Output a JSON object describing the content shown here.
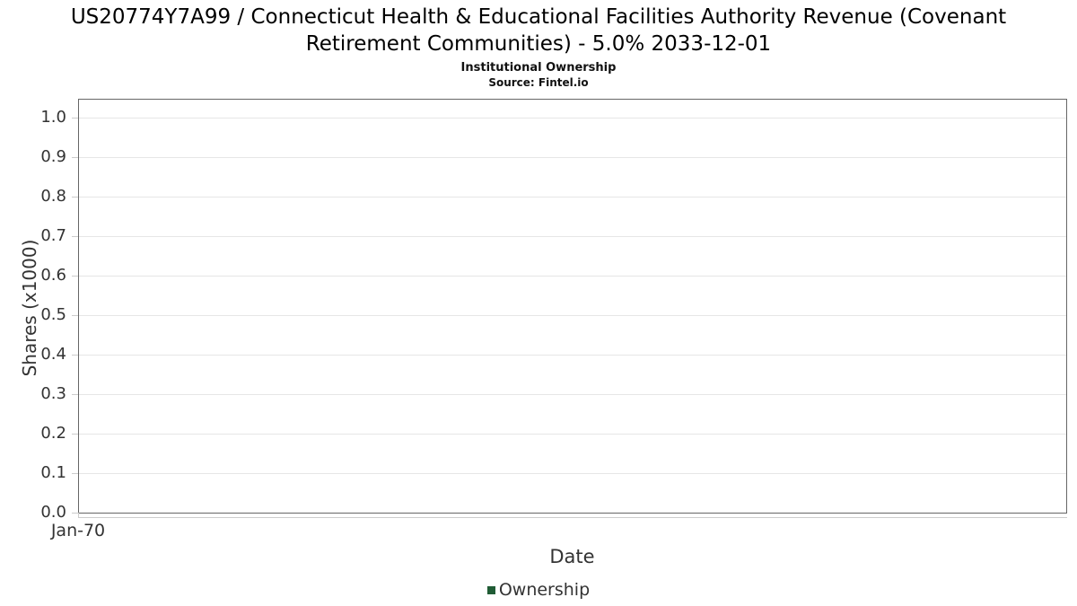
{
  "chart_data": {
    "type": "line",
    "title": "US20774Y7A99 / Connecticut Health & Educational Facilities Authority Revenue (Covenant Retirement Communities) - 5.0% 2033-12-01",
    "subtitle": "Institutional Ownership",
    "source": "Source: Fintel.io",
    "xlabel": "Date",
    "ylabel": "Shares (x1000)",
    "x_ticks": [
      "Jan-70"
    ],
    "y_ticks": [
      "0.0",
      "0.1",
      "0.2",
      "0.3",
      "0.4",
      "0.5",
      "0.6",
      "0.7",
      "0.8",
      "0.9",
      "1.0"
    ],
    "ylim": [
      0,
      1.05
    ],
    "grid": true,
    "legend_position": "bottom-center",
    "series": [
      {
        "name": "Ownership",
        "color": "#205c35",
        "x": [],
        "values": []
      }
    ],
    "colors": {
      "plot_border": "#666666",
      "gridline": "#e6e6e6",
      "tick": "#cccccc",
      "text": "#333333",
      "title_text": "#000000"
    }
  }
}
